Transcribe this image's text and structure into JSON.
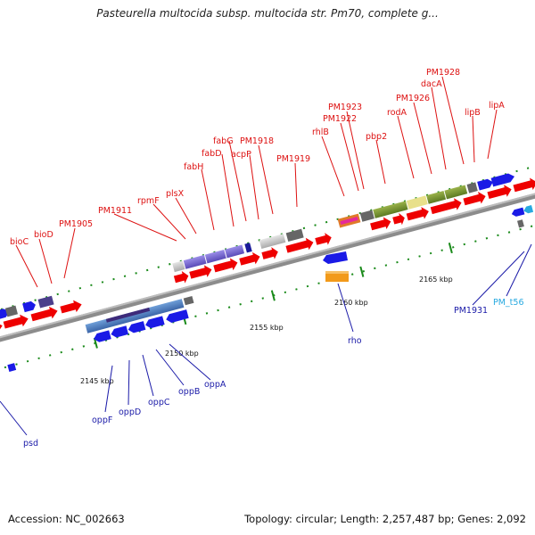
{
  "title": "Pasteurella multocida subsp. multocida str. Pm70, complete g...",
  "footer": {
    "accession": "Accession: NC_002663",
    "summary": "Topology: circular; Length: 2,257,487 bp; Genes: 2,092"
  },
  "scale_labels": [
    "2145 kbp",
    "2150 kbp",
    "2155 kbp",
    "2160 kbp",
    "2165 kbp"
  ],
  "genes_plus_strand": [
    "bioC",
    "bioD",
    "PM1905",
    "PM1911",
    "rpmF",
    "plsX",
    "fabH",
    "fabD",
    "fabG",
    "acpP",
    "PM1918",
    "PM1919",
    "rhlB",
    "PM1922",
    "PM1923",
    "pbp2",
    "rodA",
    "PM1926",
    "dacA",
    "PM1928",
    "lipB",
    "lipA"
  ],
  "genes_minus_strand": [
    "psd",
    "oppF",
    "oppD",
    "oppC",
    "oppB",
    "oppA",
    "rho",
    "PM1931",
    "PM_t56"
  ],
  "colors": {
    "cds_arrow": "#ee0000",
    "backbone": "#8c8c8c",
    "tick": "#1a8a1a",
    "label_plus": "#dd1111",
    "label_minus": "#1a1aa8",
    "label_trna": "#27a9e0"
  }
}
